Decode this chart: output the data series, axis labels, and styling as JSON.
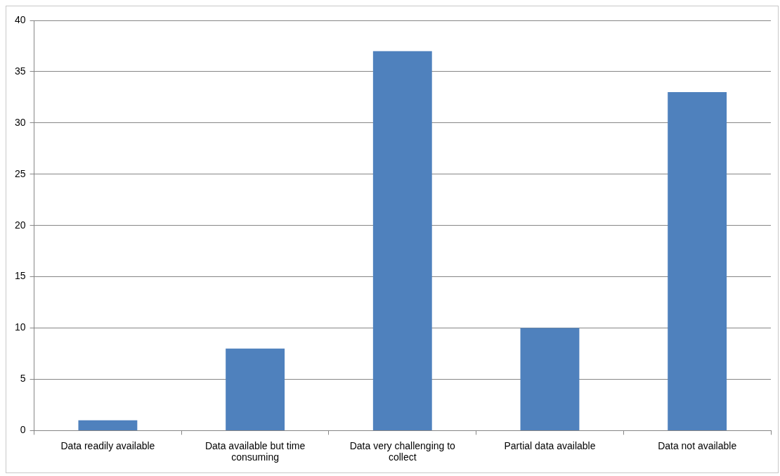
{
  "chart_data": {
    "type": "bar",
    "categories": [
      "Data readily available",
      "Data available but time consuming",
      "Data very challenging to collect",
      "Partial data available",
      "Data not available"
    ],
    "values": [
      1,
      8,
      37,
      10,
      33
    ],
    "color": "#4f81bd",
    "ylim": [
      0,
      40
    ],
    "yticks": [
      0,
      5,
      10,
      15,
      20,
      25,
      30,
      35,
      40
    ],
    "grid": "y",
    "legend": false
  }
}
